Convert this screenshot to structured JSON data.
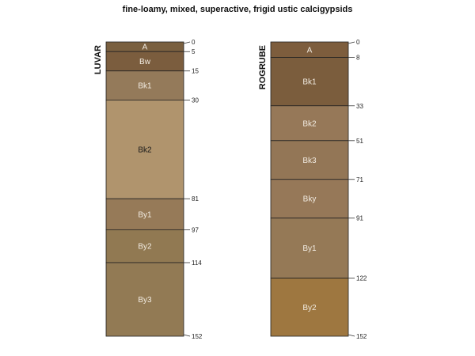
{
  "title": "fine-loamy, mixed, superactive, frigid ustic calcigypsids",
  "max_depth": 152,
  "profiles": [
    {
      "name": "LUVAR",
      "horizons": [
        {
          "name": "A",
          "top": 0,
          "bottom": 5,
          "color": "#7a6040"
        },
        {
          "name": "Bw",
          "top": 5,
          "bottom": 15,
          "color": "#7b5d3e"
        },
        {
          "name": "Bk1",
          "top": 15,
          "bottom": 30,
          "color": "#947a5a"
        },
        {
          "name": "Bk2",
          "top": 30,
          "bottom": 81,
          "color": "#b0946d"
        },
        {
          "name": "By1",
          "top": 81,
          "bottom": 97,
          "color": "#967a58"
        },
        {
          "name": "By2",
          "top": 97,
          "bottom": 114,
          "color": "#917952"
        },
        {
          "name": "By3",
          "top": 114,
          "bottom": 152,
          "color": "#927a54"
        }
      ],
      "depth_labels": [
        "0",
        "5",
        "15",
        "30",
        "81",
        "97",
        "114",
        "152"
      ]
    },
    {
      "name": "ROGRUBE",
      "horizons": [
        {
          "name": "A",
          "top": 0,
          "bottom": 8,
          "color": "#7d5d3d"
        },
        {
          "name": "Bk1",
          "top": 8,
          "bottom": 33,
          "color": "#7b5d3d"
        },
        {
          "name": "Bk2",
          "top": 33,
          "bottom": 51,
          "color": "#967858"
        },
        {
          "name": "Bk3",
          "top": 51,
          "bottom": 71,
          "color": "#937656"
        },
        {
          "name": "Bky",
          "top": 71,
          "bottom": 91,
          "color": "#967858"
        },
        {
          "name": "By1",
          "top": 91,
          "bottom": 122,
          "color": "#957956"
        },
        {
          "name": "By2",
          "top": 122,
          "bottom": 152,
          "color": "#9e7740"
        }
      ],
      "depth_labels": [
        "0",
        "8",
        "33",
        "51",
        "71",
        "91",
        "122",
        "152"
      ]
    }
  ]
}
